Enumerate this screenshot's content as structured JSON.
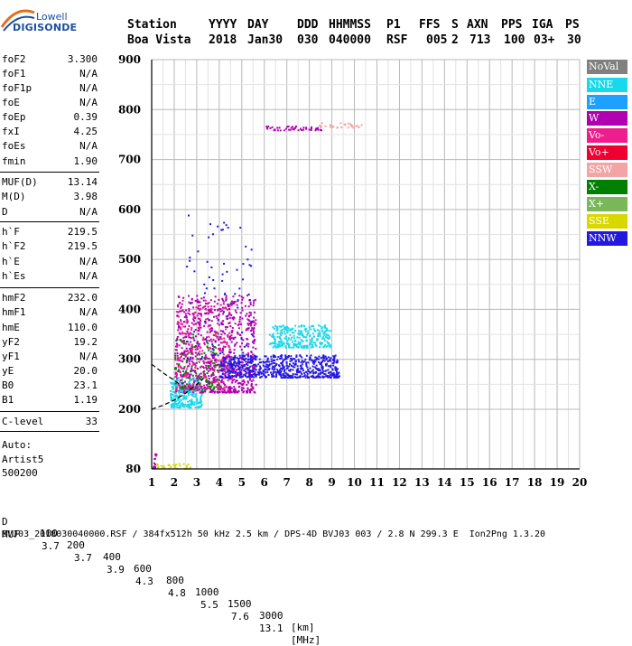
{
  "logo": {
    "line1": "Lowell",
    "line2": "DIGISONDE"
  },
  "header": {
    "labels": [
      "Station",
      "YYYY",
      "DAY",
      "DDD",
      "HHMMSS",
      "P1",
      "FFS",
      "S",
      "AXN",
      "PPS",
      "IGA",
      "PS"
    ],
    "values": [
      "Boa Vista",
      "2018",
      "Jan30",
      "030",
      "040000",
      "RSF",
      "005",
      "2",
      "713",
      "100",
      "03+",
      "30"
    ]
  },
  "params": [
    {
      "name": "foF2",
      "value": "3.300"
    },
    {
      "name": "foF1",
      "value": "N/A"
    },
    {
      "name": "foF1p",
      "value": "N/A"
    },
    {
      "name": "foE",
      "value": "N/A"
    },
    {
      "name": "foEp",
      "value": "0.39"
    },
    {
      "name": "fxI",
      "value": "4.25"
    },
    {
      "name": "foEs",
      "value": "N/A"
    },
    {
      "name": "fmin",
      "value": "1.90"
    },
    {
      "name": "MUF(D)",
      "value": "13.14"
    },
    {
      "name": "M(D)",
      "value": "3.98"
    },
    {
      "name": "D",
      "value": "N/A"
    },
    {
      "name": "h`F",
      "value": "219.5"
    },
    {
      "name": "h`F2",
      "value": "219.5"
    },
    {
      "name": "h`E",
      "value": "N/A"
    },
    {
      "name": "h`Es",
      "value": "N/A"
    },
    {
      "name": "hmF2",
      "value": "232.0"
    },
    {
      "name": "hmF1",
      "value": "N/A"
    },
    {
      "name": "hmE",
      "value": "110.0"
    },
    {
      "name": "yF2",
      "value": "19.2"
    },
    {
      "name": "yF1",
      "value": "N/A"
    },
    {
      "name": "yE",
      "value": "20.0"
    },
    {
      "name": "B0",
      "value": "23.1"
    },
    {
      "name": "B1",
      "value": "1.19"
    },
    {
      "name": "C-level",
      "value": "33"
    }
  ],
  "auto": {
    "line1": "Auto:",
    "line2": "Artist5",
    "line3": "500200"
  },
  "legend": [
    {
      "label": "NoVal",
      "color": "#808080"
    },
    {
      "label": "NNE",
      "color": "#18d8ec"
    },
    {
      "label": "E",
      "color": "#1ea0ff"
    },
    {
      "label": "W",
      "color": "#b000b0"
    },
    {
      "label": "Vo-",
      "color": "#ee1c8c"
    },
    {
      "label": "Vo+",
      "color": "#ee0030"
    },
    {
      "label": "SSW",
      "color": "#f4a4a4"
    },
    {
      "label": "X-",
      "color": "#008000"
    },
    {
      "label": "X+",
      "color": "#78b858"
    },
    {
      "label": "SSE",
      "color": "#d8d800"
    },
    {
      "label": "NNW",
      "color": "#2418e0"
    }
  ],
  "chart_data": {
    "type": "scatter",
    "title": "",
    "xlabel": "",
    "ylabel": "",
    "xlim": [
      1,
      20
    ],
    "ylim": [
      80,
      900
    ],
    "x_ticks": [
      1,
      2,
      3,
      4,
      5,
      6,
      7,
      8,
      9,
      10,
      11,
      12,
      13,
      14,
      15,
      16,
      17,
      18,
      19,
      20
    ],
    "y_ticks": [
      80,
      200,
      300,
      400,
      500,
      600,
      700,
      800,
      900
    ],
    "grid": true,
    "clusters": [
      {
        "series": "W",
        "x_range": [
          2.0,
          5.6
        ],
        "y_range": [
          235,
          430
        ],
        "count": 900
      },
      {
        "series": "NNW",
        "x_range": [
          4.0,
          9.3
        ],
        "y_range": [
          265,
          310
        ],
        "count": 650
      },
      {
        "series": "NNE",
        "x_range": [
          6.2,
          8.9
        ],
        "y_range": [
          325,
          370
        ],
        "count": 280
      },
      {
        "series": "NNE",
        "x_range": [
          1.8,
          3.2
        ],
        "y_range": [
          205,
          265
        ],
        "count": 240
      },
      {
        "series": "X-",
        "x_range": [
          2.0,
          4.0
        ],
        "y_range": [
          240,
          355
        ],
        "count": 120
      },
      {
        "series": "Vo-",
        "x_range": [
          2.0,
          4.5
        ],
        "y_range": [
          240,
          420
        ],
        "count": 220
      },
      {
        "series": "NNW",
        "x_range": [
          2.5,
          5.5
        ],
        "y_range": [
          300,
          590
        ],
        "count": 80
      },
      {
        "series": "W",
        "x_range": [
          6.0,
          8.6
        ],
        "y_range": [
          760,
          768
        ],
        "count": 45
      },
      {
        "series": "SSW",
        "x_range": [
          8.4,
          10.3
        ],
        "y_range": [
          765,
          775
        ],
        "count": 30
      },
      {
        "series": "SSE",
        "x_range": [
          1.2,
          2.8
        ],
        "y_range": [
          82,
          92
        ],
        "count": 30
      },
      {
        "series": "W",
        "x_range": [
          1.0,
          1.2
        ],
        "y_range": [
          82,
          115
        ],
        "count": 12
      }
    ],
    "fitted_curves": [
      {
        "name": "virtual-height-profile",
        "points": [
          [
            1.0,
            200
          ],
          [
            1.5,
            208
          ],
          [
            2.0,
            218
          ],
          [
            2.5,
            232
          ],
          [
            3.0,
            250
          ],
          [
            3.3,
            262
          ]
        ]
      },
      {
        "name": "lower-trace",
        "points": [
          [
            1.0,
            290
          ],
          [
            1.5,
            273
          ],
          [
            2.0,
            258
          ],
          [
            2.3,
            248
          ]
        ]
      }
    ]
  },
  "bottom": {
    "row1": {
      "label": "D",
      "values": [
        "100",
        "200",
        "400",
        "600",
        "800",
        "1000",
        "1500",
        "3000"
      ],
      "unit": "[km]"
    },
    "row2": {
      "label": "MUF",
      "values": [
        "3.7",
        "3.7",
        "3.9",
        "4.3",
        "4.8",
        "5.5",
        "7.6",
        "13.1"
      ],
      "unit": "[MHz]"
    },
    "footer": "BVJ03_2018030040000.RSF / 384fx512h 50 kHz 2.5 km / DPS-4D BVJ03 003 / 2.8 N 299.3 E  Ion2Png 1.3.20"
  }
}
